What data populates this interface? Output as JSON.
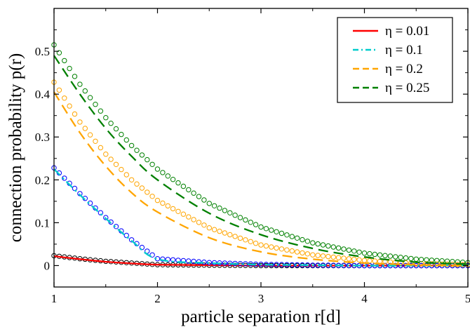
{
  "chart_data": {
    "type": "line",
    "xlabel": "particle separation r[d]",
    "ylabel": "connection probability p(r)",
    "xlim": [
      1,
      5
    ],
    "ylim": [
      -0.05,
      0.6
    ],
    "xticks": [
      1,
      2,
      3,
      4,
      5
    ],
    "xtick_labels": [
      "1",
      "2",
      "3",
      "4",
      "5"
    ],
    "yticks": [
      0,
      0.1,
      0.2,
      0.3,
      0.4,
      0.5
    ],
    "ytick_labels": [
      "0",
      "0.1",
      "0.2",
      "0.3",
      "0.4",
      "0.5"
    ],
    "grid": false,
    "legend_position": "top-right",
    "x": [
      1.0,
      1.25,
      1.5,
      1.75,
      2.0,
      2.5,
      3.0,
      3.5,
      4.0,
      4.5,
      5.0
    ],
    "series": [
      {
        "name": "η = 0.01",
        "color": "#ff0000",
        "marker_color": "#000000",
        "dash": "solid",
        "line": [
          0.022,
          0.015,
          0.009,
          0.005,
          0.002,
          0.001,
          0.0,
          0.0,
          0.0,
          0.0,
          0.0
        ],
        "markers": [
          0.023,
          0.016,
          0.01,
          0.006,
          0.002,
          0.001,
          0.0,
          0.0,
          0.0,
          0.0,
          0.0
        ]
      },
      {
        "name": "η = 0.1",
        "color": "#00cccc",
        "marker_color": "#0000ff",
        "dash": "dash-dot",
        "line": [
          0.225,
          0.165,
          0.11,
          0.058,
          0.015,
          0.006,
          0.002,
          0.001,
          0.0,
          0.0,
          0.0
        ],
        "markers": [
          0.228,
          0.168,
          0.112,
          0.06,
          0.016,
          0.007,
          0.003,
          0.001,
          0.0,
          0.0,
          0.0
        ]
      },
      {
        "name": "η = 0.2",
        "color": "#ffa500",
        "marker_color": "#ffa500",
        "dash": "dash",
        "line": [
          0.405,
          0.31,
          0.232,
          0.17,
          0.125,
          0.065,
          0.032,
          0.015,
          0.006,
          0.002,
          0.0
        ],
        "markers": [
          0.428,
          0.335,
          0.26,
          0.2,
          0.152,
          0.088,
          0.048,
          0.025,
          0.012,
          0.005,
          0.002
        ]
      },
      {
        "name": "η = 0.25",
        "color": "#008000",
        "marker_color": "#008000",
        "dash": "dash",
        "line": [
          0.49,
          0.4,
          0.32,
          0.255,
          0.2,
          0.122,
          0.072,
          0.04,
          0.02,
          0.008,
          0.003
        ],
        "markers": [
          0.515,
          0.423,
          0.345,
          0.28,
          0.225,
          0.145,
          0.09,
          0.053,
          0.029,
          0.015,
          0.007
        ]
      }
    ]
  }
}
